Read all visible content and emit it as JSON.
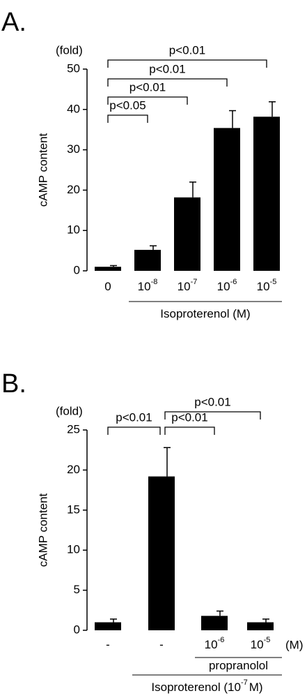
{
  "chart_data": [
    {
      "type": "bar",
      "panel_label": "A.",
      "unit_label": "(fold)",
      "ylabel": "cAMP content",
      "categories": [
        {
          "text": "0"
        },
        {
          "text": "10",
          "sup": "-8"
        },
        {
          "text": "10",
          "sup": "-7"
        },
        {
          "text": "10",
          "sup": "-6"
        },
        {
          "text": "10",
          "sup": "-5"
        }
      ],
      "values": [
        1.0,
        5.2,
        18.2,
        35.4,
        38.2
      ],
      "errors": [
        0.3,
        1.0,
        3.8,
        4.3,
        3.7
      ],
      "color": "#000000",
      "ylim": [
        0,
        50
      ],
      "yticks": [
        0,
        10,
        20,
        30,
        40,
        50
      ],
      "comparisons": [
        {
          "from": 0,
          "to": 1,
          "label": "p<0.05"
        },
        {
          "from": 0,
          "to": 2,
          "label": "p<0.01"
        },
        {
          "from": 0,
          "to": 3,
          "label": "p<0.01"
        },
        {
          "from": 0,
          "to": 4,
          "label": "p<0.01"
        }
      ],
      "groups": [
        {
          "from": 1,
          "to": 4,
          "label": {
            "text": "Isoproterenol (M)"
          }
        }
      ]
    },
    {
      "type": "bar",
      "panel_label": "B.",
      "unit_label": "(fold)",
      "ylabel": "cAMP content",
      "categories": [
        {
          "text": "-"
        },
        {
          "text": "-"
        },
        {
          "text": "10",
          "sup": "-6"
        },
        {
          "text": "10",
          "sup": "-5"
        }
      ],
      "category_unit": "(M)",
      "values": [
        1.0,
        19.2,
        1.8,
        1.0
      ],
      "errors": [
        0.4,
        3.6,
        0.6,
        0.4
      ],
      "color": "#000000",
      "ylim": [
        0,
        25
      ],
      "yticks": [
        0,
        5,
        10,
        15,
        20,
        25
      ],
      "comparisons": [
        {
          "from": 0,
          "to": 1,
          "label": "p<0.01"
        },
        {
          "from": 1,
          "to": 2,
          "label": "p<0.01"
        },
        {
          "from": 1,
          "to": 3,
          "label": "p<0.01"
        }
      ],
      "groups": [
        {
          "from": 2,
          "to": 3,
          "label": {
            "text": "propranolol"
          }
        },
        {
          "from": 1,
          "to": 3,
          "label": {
            "text": "Isoproterenol (10",
            "sup": "-7",
            "tail": "M)"
          }
        }
      ]
    }
  ]
}
